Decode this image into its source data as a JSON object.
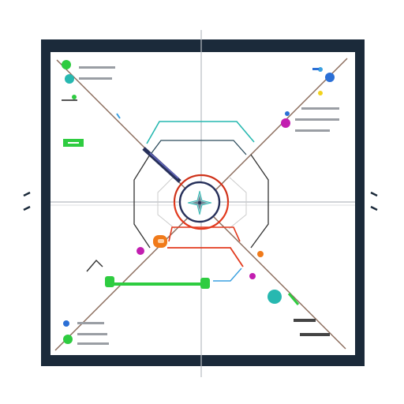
{
  "diagram": {
    "frame_color": "#1b2a3a",
    "panel_color": "#ffffff",
    "axis_color": "#b8bcc2",
    "diagonal_color": "#8a6b5a",
    "accent_colors": {
      "teal": "#27b8b0",
      "navy": "#27305a",
      "red": "#e23a1e",
      "orange": "#f07a1a",
      "green": "#2ecc40",
      "magenta": "#c21eb0",
      "blue": "#2b6fd6",
      "light_blue": "#3aa0e0",
      "yellow": "#f2d21b"
    },
    "center_icon": "compass-rose-icon",
    "corner_icon": "dots-icon",
    "side_tick_icon": "bracket-tick-icon"
  }
}
